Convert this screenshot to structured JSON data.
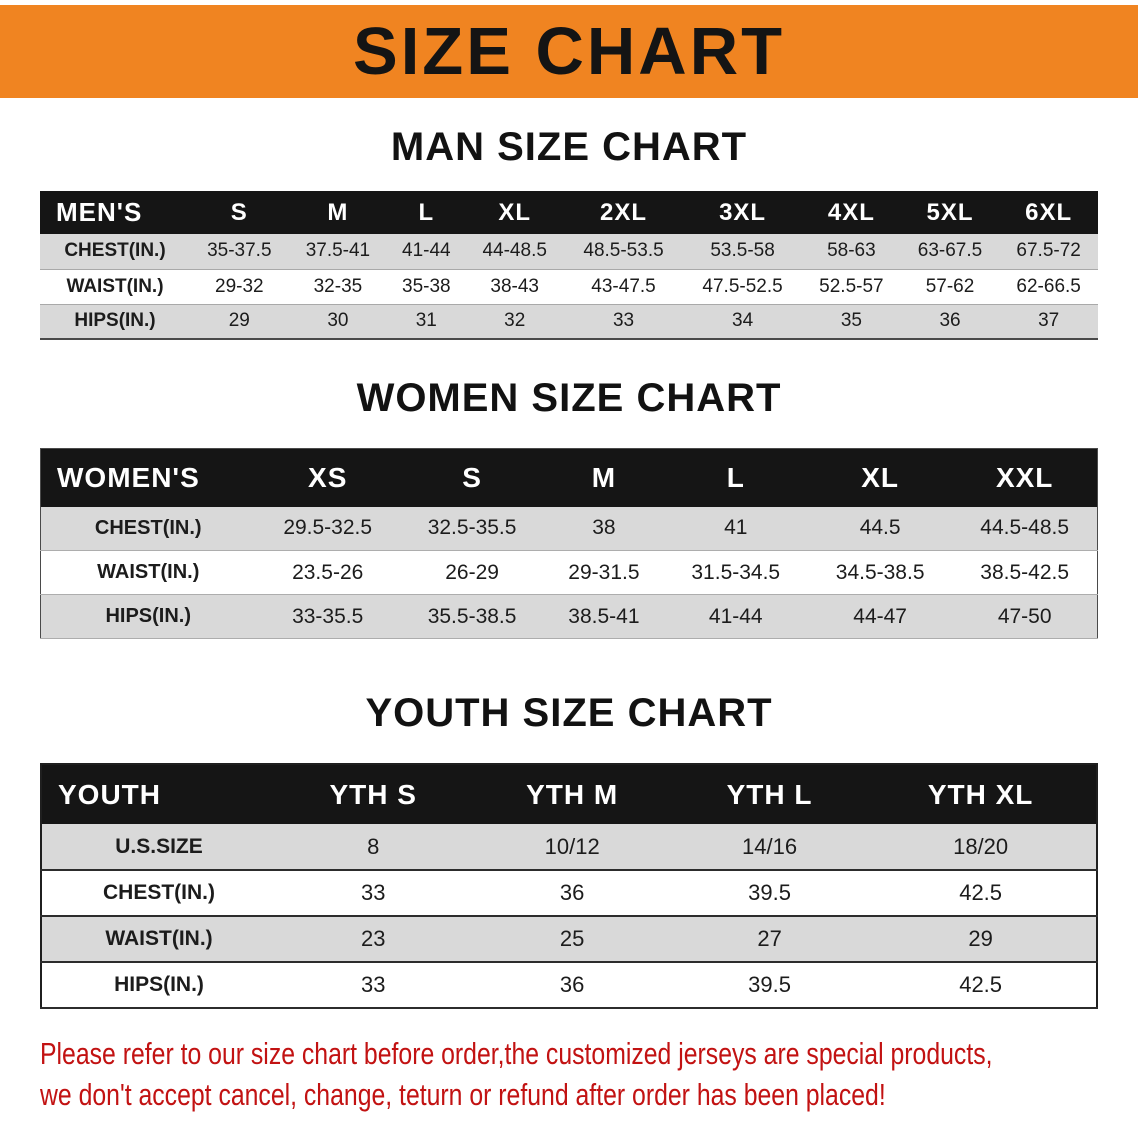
{
  "colors": {
    "banner_bg": "#F08421",
    "header_bg": "#151515",
    "header_text": "#FFFFFF",
    "stripe_bg": "#D9D9D9",
    "heading_text": "#121212",
    "disclaimer_text": "#C21212"
  },
  "banner": {
    "title": "SIZE CHART"
  },
  "sections": [
    {
      "id": "men",
      "heading": "MAN SIZE CHART",
      "table": {
        "header": [
          "MEN'S",
          "S",
          "M",
          "L",
          "XL",
          "2XL",
          "3XL",
          "4XL",
          "5XL",
          "6XL"
        ],
        "rows": [
          [
            "CHEST(IN.)",
            "35-37.5",
            "37.5-41",
            "41-44",
            "44-48.5",
            "48.5-53.5",
            "53.5-58",
            "58-63",
            "63-67.5",
            "67.5-72"
          ],
          [
            "WAIST(IN.)",
            "29-32",
            "32-35",
            "35-38",
            "38-43",
            "43-47.5",
            "47.5-52.5",
            "52.5-57",
            "57-62",
            "62-66.5"
          ],
          [
            "HIPS(IN.)",
            "29",
            "30",
            "31",
            "32",
            "33",
            "34",
            "35",
            "36",
            "37"
          ]
        ]
      }
    },
    {
      "id": "women",
      "heading": "WOMEN SIZE CHART",
      "table": {
        "header": [
          "WOMEN'S",
          "XS",
          "S",
          "M",
          "L",
          "XL",
          "XXL"
        ],
        "rows": [
          [
            "CHEST(IN.)",
            "29.5-32.5",
            "32.5-35.5",
            "38",
            "41",
            "44.5",
            "44.5-48.5"
          ],
          [
            "WAIST(IN.)",
            "23.5-26",
            "26-29",
            "29-31.5",
            "31.5-34.5",
            "34.5-38.5",
            "38.5-42.5"
          ],
          [
            "HIPS(IN.)",
            "33-35.5",
            "35.5-38.5",
            "38.5-41",
            "41-44",
            "44-47",
            "47-50"
          ]
        ]
      }
    },
    {
      "id": "youth",
      "heading": "YOUTH SIZE CHART",
      "table": {
        "header": [
          "YOUTH",
          "YTH S",
          "YTH M",
          "YTH L",
          "YTH XL"
        ],
        "rows": [
          [
            "U.S.SIZE",
            "8",
            "10/12",
            "14/16",
            "18/20"
          ],
          [
            "CHEST(IN.)",
            "33",
            "36",
            "39.5",
            "42.5"
          ],
          [
            "WAIST(IN.)",
            "23",
            "25",
            "27",
            "29"
          ],
          [
            "HIPS(IN.)",
            "33",
            "36",
            "39.5",
            "42.5"
          ]
        ]
      }
    }
  ],
  "footer": {
    "line1": "Please refer to our size chart before order,the customized jerseys are special products,",
    "line2": "we don't accept cancel, change, teturn or refund after order has been placed!"
  }
}
